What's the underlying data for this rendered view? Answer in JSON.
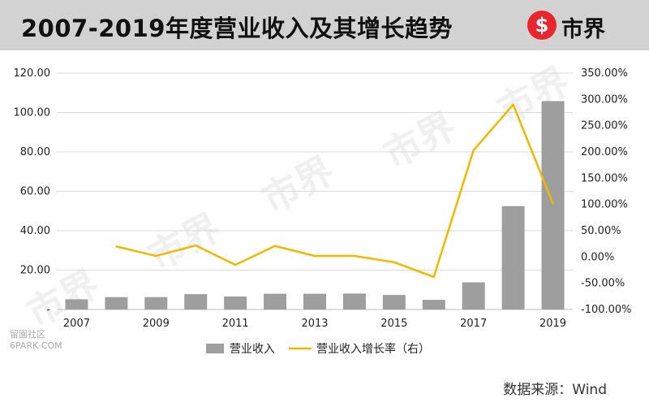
{
  "header": {
    "title": "2007-2019年度营业收入及其增长趋势",
    "logo_text": "市界",
    "logo_symbol": "$"
  },
  "source_note": "数据来源：Wind",
  "site_mark": [
    "留園社区",
    "6PARK·COM"
  ],
  "colors": {
    "bar": "#9e9e9e",
    "line": "#f2b800",
    "title_bar": "#d2d2d2",
    "logo_red": "#e8262d"
  },
  "chart_data": {
    "type": "bar+line",
    "categories": [
      "2007",
      "2008",
      "2009",
      "2010",
      "2011",
      "2012",
      "2013",
      "2014",
      "2015",
      "2016",
      "2017",
      "2018",
      "2019"
    ],
    "x_tick_labels": [
      "2007",
      "",
      "2009",
      "",
      "2011",
      "",
      "2013",
      "",
      "2015",
      "",
      "2017",
      "",
      "2019"
    ],
    "y_left": {
      "range": [
        0,
        120
      ],
      "tick_labels": [
        "-",
        "20.00",
        "40.00",
        "60.00",
        "80.00",
        "100.00",
        "120.00"
      ],
      "tick_values": [
        0,
        20,
        40,
        60,
        80,
        100,
        120
      ]
    },
    "y_right": {
      "range": [
        -100,
        350
      ],
      "tick_labels": [
        "-100.00%",
        "-50.00%",
        "0.00%",
        "50.00%",
        "100.00%",
        "150.00%",
        "200.00%",
        "250.00%",
        "300.00%",
        "350.00%"
      ],
      "tick_values": [
        -100,
        -50,
        0,
        50,
        100,
        150,
        200,
        250,
        300,
        350
      ]
    },
    "series": [
      {
        "name": "营业收入",
        "kind": "bar",
        "axis": "left",
        "values": [
          5.2,
          6.3,
          6.3,
          7.8,
          6.6,
          8.0,
          8.0,
          8.1,
          7.4,
          4.9,
          13.8,
          52.5,
          105.8
        ]
      },
      {
        "name": "营业收入增长率（右）",
        "kind": "line",
        "axis": "right",
        "values": [
          null,
          20,
          2,
          22,
          -15,
          21,
          2,
          2,
          -10,
          -38,
          203,
          290,
          102
        ]
      }
    ],
    "grid": "horizontal",
    "legend_position": "bottom"
  }
}
